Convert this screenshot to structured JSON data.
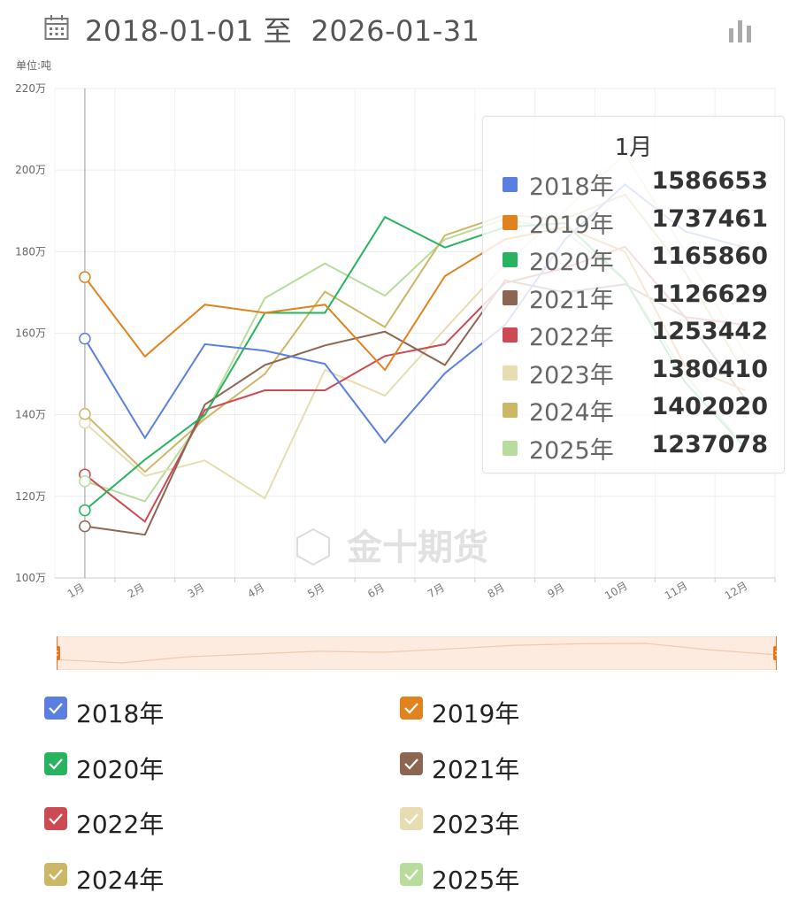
{
  "header": {
    "start_date": "2018-01-01",
    "separator": "至",
    "end_date": "2026-01-31"
  },
  "unit_label": "单位:吨",
  "tooltip": {
    "title": "1月",
    "rows": [
      {
        "name": "2018年",
        "value": "1586653",
        "color": "#5b7fe0"
      },
      {
        "name": "2019年",
        "value": "1737461",
        "color": "#e0821e"
      },
      {
        "name": "2020年",
        "value": "1165860",
        "color": "#27b35f"
      },
      {
        "name": "2021年",
        "value": "1126629",
        "color": "#8c6650"
      },
      {
        "name": "2022年",
        "value": "1253442",
        "color": "#cc4a52"
      },
      {
        "name": "2023年",
        "value": "1380410",
        "color": "#e8ddb0"
      },
      {
        "name": "2024年",
        "value": "1402020",
        "color": "#cbb766"
      },
      {
        "name": "2025年",
        "value": "1237078",
        "color": "#b8dc9c"
      }
    ]
  },
  "watermark": "金十期货",
  "legend": [
    {
      "label": "2018年",
      "color": "#5b7fe0"
    },
    {
      "label": "2019年",
      "color": "#e0821e"
    },
    {
      "label": "2020年",
      "color": "#27b35f"
    },
    {
      "label": "2021年",
      "color": "#8c6650"
    },
    {
      "label": "2022年",
      "color": "#cc4a52"
    },
    {
      "label": "2023年",
      "color": "#e8ddb0"
    },
    {
      "label": "2024年",
      "color": "#cbb766"
    },
    {
      "label": "2025年",
      "color": "#b8dc9c"
    }
  ],
  "chart_data": {
    "type": "line",
    "categories": [
      "1月",
      "2月",
      "3月",
      "4月",
      "5月",
      "6月",
      "7月",
      "8月",
      "9月",
      "10月",
      "11月",
      "12月"
    ],
    "ylim": [
      1000000,
      2200000
    ],
    "yticks": [
      1000000,
      1200000,
      1400000,
      1600000,
      1800000,
      2000000,
      2200000
    ],
    "ytick_labels": [
      "100万",
      "120万",
      "140万",
      "160万",
      "180万",
      "200万",
      "220万"
    ],
    "grid": true,
    "highlight_index": 0,
    "series": [
      {
        "name": "2018年",
        "color": "#5b7fe0",
        "values": [
          1586653,
          1343000,
          1573000,
          1557000,
          1525000,
          1332000,
          1502000,
          1620000,
          1830000,
          1965000,
          1850000,
          1810000
        ]
      },
      {
        "name": "2019年",
        "color": "#e0821e",
        "values": [
          1737461,
          1543000,
          1670000,
          1650000,
          1670000,
          1510000,
          1740000,
          1830000,
          1860000,
          1800000,
          1520000,
          1460000
        ]
      },
      {
        "name": "2020年",
        "color": "#27b35f",
        "values": [
          1165860,
          1290000,
          1400000,
          1650000,
          1650000,
          1885000,
          1810000,
          1860000,
          1870000,
          1730000,
          1480000,
          1320000
        ]
      },
      {
        "name": "2021年",
        "color": "#8c6650",
        "values": [
          1126629,
          1106000,
          1425000,
          1522000,
          1570000,
          1604000,
          1522000,
          1730000,
          1700000,
          1720000,
          1640000,
          1440000
        ]
      },
      {
        "name": "2022年",
        "color": "#cc4a52",
        "values": [
          1253442,
          1138000,
          1412000,
          1460000,
          1460000,
          1544000,
          1573000,
          1723000,
          1760000,
          1812000,
          1640000,
          1620000
        ]
      },
      {
        "name": "2023年",
        "color": "#e8ddb0",
        "values": [
          1380410,
          1250000,
          1288000,
          1195000,
          1510000,
          1447000,
          1610000,
          1770000,
          1900000,
          2040000,
          1800000,
          1550000
        ]
      },
      {
        "name": "2024年",
        "color": "#cbb766",
        "values": [
          1402020,
          1260000,
          1390000,
          1500000,
          1702000,
          1615000,
          1840000,
          1890000,
          1880000,
          1940000,
          1750000,
          1500000
        ]
      },
      {
        "name": "2025年",
        "color": "#b8dc9c",
        "values": [
          1237078,
          1188000,
          1400000,
          1686000,
          1771000,
          1692000,
          1830000,
          1880000,
          1850000,
          1730000,
          1500000,
          1320000
        ]
      }
    ]
  },
  "zoom_slider": {
    "range_start": 0,
    "range_end": 1
  }
}
